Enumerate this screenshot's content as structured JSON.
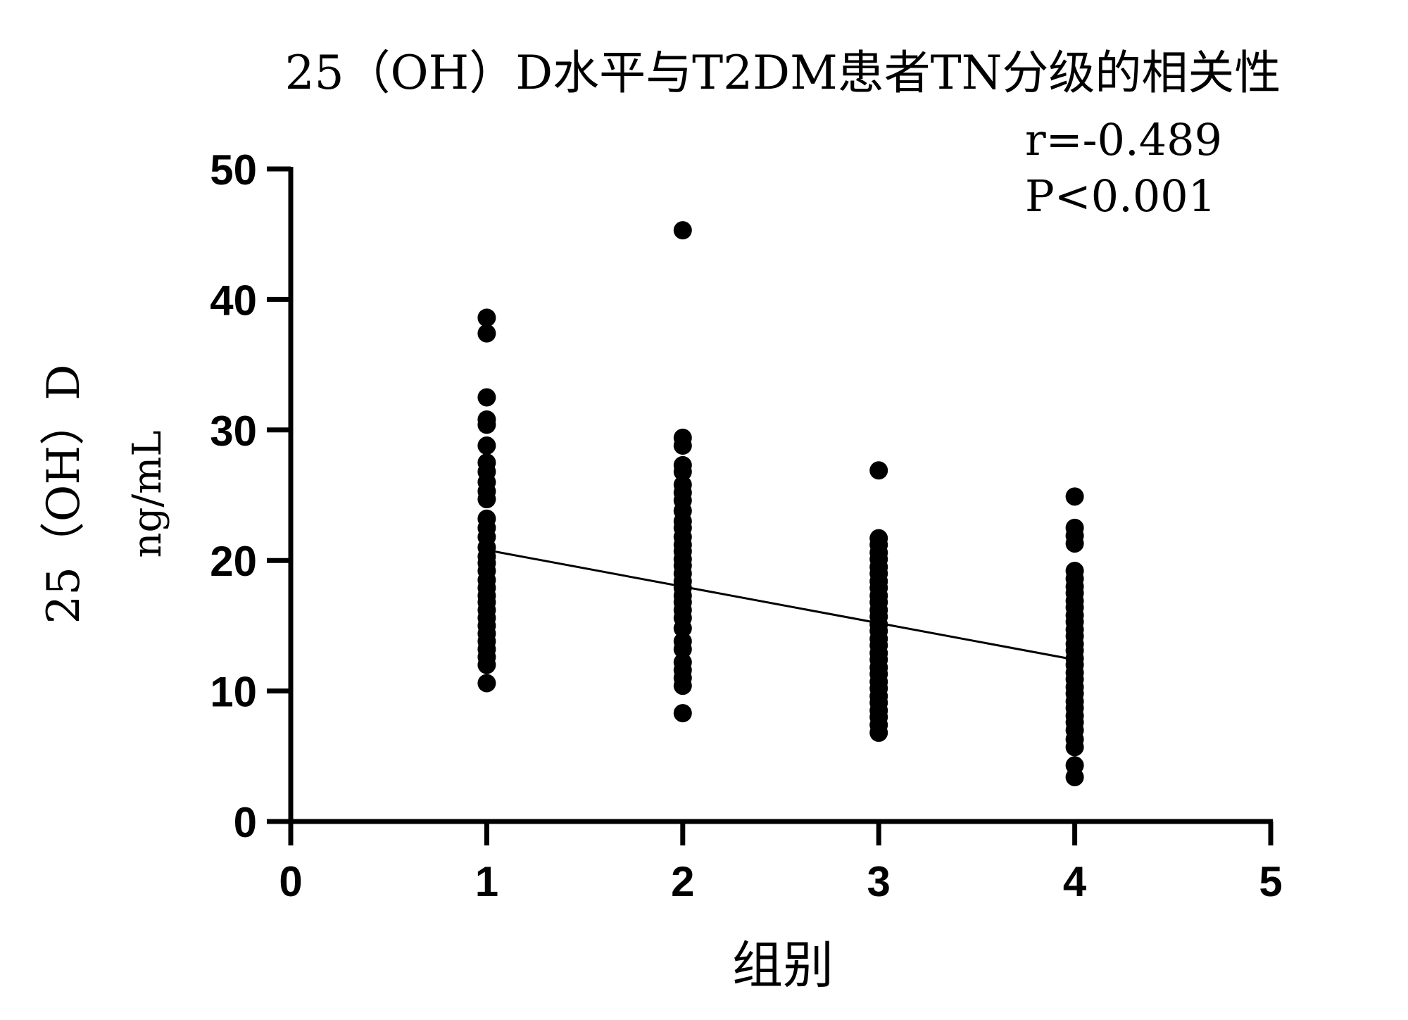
{
  "chart_data": {
    "type": "scatter",
    "title": "25（OH）D水平与T2DM患者TN分级的相关性",
    "xlabel": "组别",
    "ylabel_line1": "25（OH）D",
    "ylabel_line2": "ng/mL",
    "xlim": [
      0,
      5
    ],
    "ylim": [
      0,
      50
    ],
    "xticks": [
      "0",
      "1",
      "2",
      "3",
      "4",
      "5"
    ],
    "yticks": [
      "0",
      "10",
      "20",
      "30",
      "40",
      "50"
    ],
    "grid": false,
    "annotations": {
      "r": "r=-0.489",
      "p": "P<0.001"
    },
    "series": [
      {
        "x": 1,
        "values": [
          38.6,
          37.4,
          32.5,
          30.8,
          30.4,
          28.8,
          27.5,
          26.8,
          26.0,
          25.3,
          24.7,
          23.2,
          22.5,
          21.8,
          21.0,
          20.3,
          19.8,
          19.2,
          18.5,
          17.9,
          17.3,
          16.8,
          16.2,
          15.6,
          15.0,
          14.4,
          13.8,
          13.2,
          12.6,
          12.0,
          10.6
        ]
      },
      {
        "x": 2,
        "values": [
          45.3,
          29.4,
          28.8,
          27.3,
          26.8,
          25.8,
          25.2,
          24.6,
          23.8,
          23.0,
          22.5,
          21.8,
          21.2,
          20.7,
          20.1,
          19.6,
          19.0,
          18.4,
          17.9,
          17.3,
          16.8,
          16.2,
          15.6,
          14.8,
          13.8,
          13.2,
          12.2,
          11.6,
          11.0,
          10.4,
          8.3
        ]
      },
      {
        "x": 3,
        "values": [
          26.9,
          21.7,
          21.2,
          20.6,
          20.1,
          19.5,
          19.0,
          18.4,
          17.9,
          17.3,
          16.8,
          16.2,
          15.7,
          15.1,
          14.6,
          14.0,
          13.5,
          12.9,
          12.4,
          11.8,
          11.3,
          10.7,
          10.2,
          9.6,
          9.1,
          8.5,
          8.0,
          7.4,
          6.8
        ]
      },
      {
        "x": 4,
        "values": [
          24.9,
          22.5,
          21.9,
          21.3,
          19.2,
          18.6,
          18.0,
          17.5,
          16.9,
          16.4,
          15.8,
          15.3,
          14.7,
          14.2,
          13.6,
          13.1,
          12.5,
          12.0,
          11.4,
          10.9,
          10.3,
          9.8,
          9.2,
          8.7,
          8.1,
          7.6,
          7.0,
          6.3,
          5.7,
          4.3,
          3.4
        ]
      }
    ],
    "regression_line": {
      "x": [
        1,
        4
      ],
      "y": [
        20.8,
        12.4
      ]
    },
    "marker_color": "#000000"
  }
}
